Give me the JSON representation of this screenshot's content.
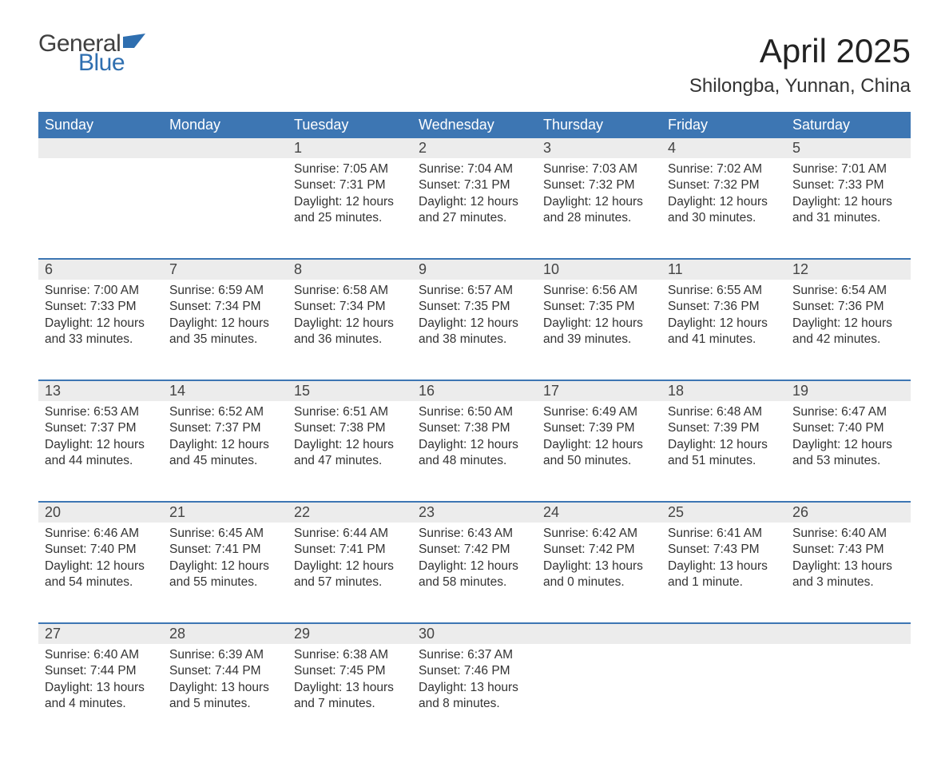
{
  "brand": {
    "line1": "General",
    "line2": "Blue",
    "flag_color": "#2f6fb0"
  },
  "title": "April 2025",
  "location": "Shilongba, Yunnan, China",
  "colors": {
    "header_bg": "#3d76b3",
    "header_text": "#ffffff",
    "daynum_bg": "#ececec",
    "row_border": "#3d76b3",
    "body_text": "#333333"
  },
  "day_headers": [
    "Sunday",
    "Monday",
    "Tuesday",
    "Wednesday",
    "Thursday",
    "Friday",
    "Saturday"
  ],
  "weeks": [
    [
      null,
      null,
      {
        "n": "1",
        "sunrise": "Sunrise: 7:05 AM",
        "sunset": "Sunset: 7:31 PM",
        "day1": "Daylight: 12 hours",
        "day2": "and 25 minutes."
      },
      {
        "n": "2",
        "sunrise": "Sunrise: 7:04 AM",
        "sunset": "Sunset: 7:31 PM",
        "day1": "Daylight: 12 hours",
        "day2": "and 27 minutes."
      },
      {
        "n": "3",
        "sunrise": "Sunrise: 7:03 AM",
        "sunset": "Sunset: 7:32 PM",
        "day1": "Daylight: 12 hours",
        "day2": "and 28 minutes."
      },
      {
        "n": "4",
        "sunrise": "Sunrise: 7:02 AM",
        "sunset": "Sunset: 7:32 PM",
        "day1": "Daylight: 12 hours",
        "day2": "and 30 minutes."
      },
      {
        "n": "5",
        "sunrise": "Sunrise: 7:01 AM",
        "sunset": "Sunset: 7:33 PM",
        "day1": "Daylight: 12 hours",
        "day2": "and 31 minutes."
      }
    ],
    [
      {
        "n": "6",
        "sunrise": "Sunrise: 7:00 AM",
        "sunset": "Sunset: 7:33 PM",
        "day1": "Daylight: 12 hours",
        "day2": "and 33 minutes."
      },
      {
        "n": "7",
        "sunrise": "Sunrise: 6:59 AM",
        "sunset": "Sunset: 7:34 PM",
        "day1": "Daylight: 12 hours",
        "day2": "and 35 minutes."
      },
      {
        "n": "8",
        "sunrise": "Sunrise: 6:58 AM",
        "sunset": "Sunset: 7:34 PM",
        "day1": "Daylight: 12 hours",
        "day2": "and 36 minutes."
      },
      {
        "n": "9",
        "sunrise": "Sunrise: 6:57 AM",
        "sunset": "Sunset: 7:35 PM",
        "day1": "Daylight: 12 hours",
        "day2": "and 38 minutes."
      },
      {
        "n": "10",
        "sunrise": "Sunrise: 6:56 AM",
        "sunset": "Sunset: 7:35 PM",
        "day1": "Daylight: 12 hours",
        "day2": "and 39 minutes."
      },
      {
        "n": "11",
        "sunrise": "Sunrise: 6:55 AM",
        "sunset": "Sunset: 7:36 PM",
        "day1": "Daylight: 12 hours",
        "day2": "and 41 minutes."
      },
      {
        "n": "12",
        "sunrise": "Sunrise: 6:54 AM",
        "sunset": "Sunset: 7:36 PM",
        "day1": "Daylight: 12 hours",
        "day2": "and 42 minutes."
      }
    ],
    [
      {
        "n": "13",
        "sunrise": "Sunrise: 6:53 AM",
        "sunset": "Sunset: 7:37 PM",
        "day1": "Daylight: 12 hours",
        "day2": "and 44 minutes."
      },
      {
        "n": "14",
        "sunrise": "Sunrise: 6:52 AM",
        "sunset": "Sunset: 7:37 PM",
        "day1": "Daylight: 12 hours",
        "day2": "and 45 minutes."
      },
      {
        "n": "15",
        "sunrise": "Sunrise: 6:51 AM",
        "sunset": "Sunset: 7:38 PM",
        "day1": "Daylight: 12 hours",
        "day2": "and 47 minutes."
      },
      {
        "n": "16",
        "sunrise": "Sunrise: 6:50 AM",
        "sunset": "Sunset: 7:38 PM",
        "day1": "Daylight: 12 hours",
        "day2": "and 48 minutes."
      },
      {
        "n": "17",
        "sunrise": "Sunrise: 6:49 AM",
        "sunset": "Sunset: 7:39 PM",
        "day1": "Daylight: 12 hours",
        "day2": "and 50 minutes."
      },
      {
        "n": "18",
        "sunrise": "Sunrise: 6:48 AM",
        "sunset": "Sunset: 7:39 PM",
        "day1": "Daylight: 12 hours",
        "day2": "and 51 minutes."
      },
      {
        "n": "19",
        "sunrise": "Sunrise: 6:47 AM",
        "sunset": "Sunset: 7:40 PM",
        "day1": "Daylight: 12 hours",
        "day2": "and 53 minutes."
      }
    ],
    [
      {
        "n": "20",
        "sunrise": "Sunrise: 6:46 AM",
        "sunset": "Sunset: 7:40 PM",
        "day1": "Daylight: 12 hours",
        "day2": "and 54 minutes."
      },
      {
        "n": "21",
        "sunrise": "Sunrise: 6:45 AM",
        "sunset": "Sunset: 7:41 PM",
        "day1": "Daylight: 12 hours",
        "day2": "and 55 minutes."
      },
      {
        "n": "22",
        "sunrise": "Sunrise: 6:44 AM",
        "sunset": "Sunset: 7:41 PM",
        "day1": "Daylight: 12 hours",
        "day2": "and 57 minutes."
      },
      {
        "n": "23",
        "sunrise": "Sunrise: 6:43 AM",
        "sunset": "Sunset: 7:42 PM",
        "day1": "Daylight: 12 hours",
        "day2": "and 58 minutes."
      },
      {
        "n": "24",
        "sunrise": "Sunrise: 6:42 AM",
        "sunset": "Sunset: 7:42 PM",
        "day1": "Daylight: 13 hours",
        "day2": "and 0 minutes."
      },
      {
        "n": "25",
        "sunrise": "Sunrise: 6:41 AM",
        "sunset": "Sunset: 7:43 PM",
        "day1": "Daylight: 13 hours",
        "day2": "and 1 minute."
      },
      {
        "n": "26",
        "sunrise": "Sunrise: 6:40 AM",
        "sunset": "Sunset: 7:43 PM",
        "day1": "Daylight: 13 hours",
        "day2": "and 3 minutes."
      }
    ],
    [
      {
        "n": "27",
        "sunrise": "Sunrise: 6:40 AM",
        "sunset": "Sunset: 7:44 PM",
        "day1": "Daylight: 13 hours",
        "day2": "and 4 minutes."
      },
      {
        "n": "28",
        "sunrise": "Sunrise: 6:39 AM",
        "sunset": "Sunset: 7:44 PM",
        "day1": "Daylight: 13 hours",
        "day2": "and 5 minutes."
      },
      {
        "n": "29",
        "sunrise": "Sunrise: 6:38 AM",
        "sunset": "Sunset: 7:45 PM",
        "day1": "Daylight: 13 hours",
        "day2": "and 7 minutes."
      },
      {
        "n": "30",
        "sunrise": "Sunrise: 6:37 AM",
        "sunset": "Sunset: 7:46 PM",
        "day1": "Daylight: 13 hours",
        "day2": "and 8 minutes."
      },
      null,
      null,
      null
    ]
  ]
}
